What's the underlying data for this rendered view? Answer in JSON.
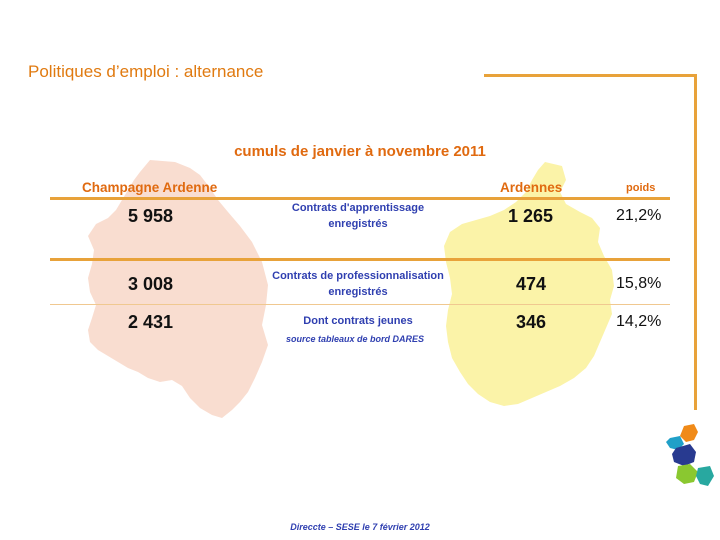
{
  "slide": {
    "title": "Politiques d’emploi : alternance",
    "subtitle": "cumuls de janvier à novembre 2011",
    "source": "source tableaux de bord DARES",
    "footer": "Direccte – SESE le 7 février 2012"
  },
  "colors": {
    "accent": "#e07a10",
    "rule": "#e8a23a",
    "region_map": "#f9ddd0",
    "ardennes_map": "#fbf3a8",
    "label_blue": "#2f3fb0"
  },
  "icons": [
    "champagne-ardenne-map",
    "ardennes-map",
    "region-logo-icon"
  ],
  "table": {
    "headers": {
      "region": "Champagne Ardenne",
      "dept": "Ardennes",
      "weight": "poids"
    },
    "rows": [
      {
        "region_value": "5 958",
        "label_line1": "Contrats d'apprentissage",
        "label_line2": "enregistrés",
        "dept_value": "1 265",
        "weight": "21,2%"
      },
      {
        "region_value": "3 008",
        "label_line1": "Contrats de professionnalisation",
        "label_line2": "enregistrés",
        "dept_value": "474",
        "weight": "15,8%"
      },
      {
        "region_value": "2 431",
        "label_line1": "Dont contrats jeunes",
        "label_line2": "",
        "dept_value": "346",
        "weight": "14,2%"
      }
    ]
  }
}
